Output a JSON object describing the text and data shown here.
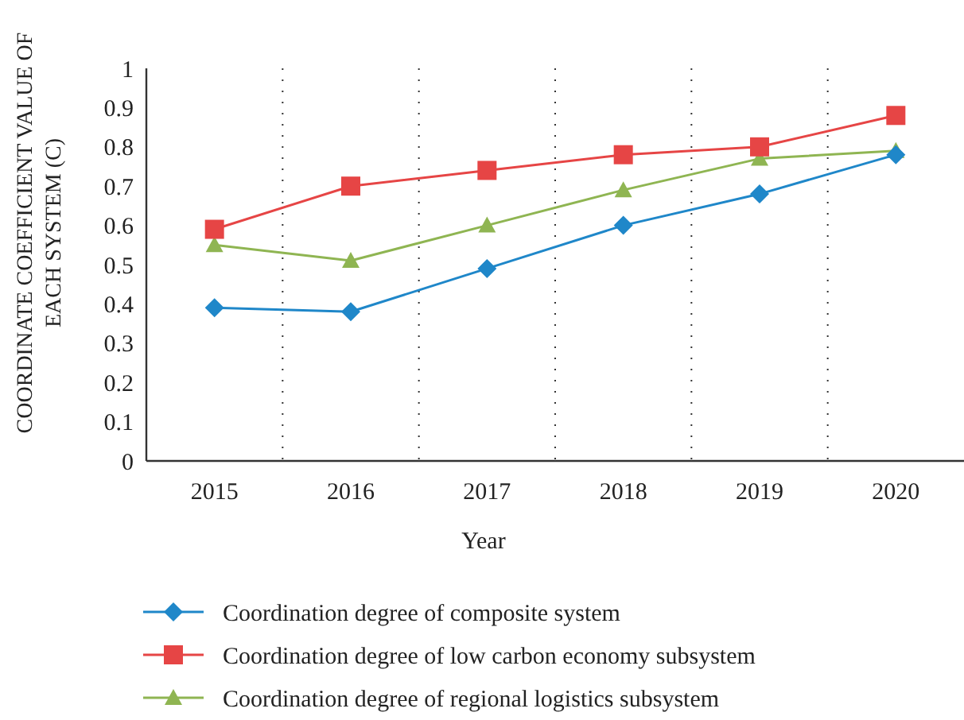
{
  "chart_data": {
    "type": "line",
    "xlabel": "Year",
    "ylabel": "COORDINATE COEFFICIENT VALUE OF EACH SYSTEM (C)",
    "categories": [
      "2015",
      "2016",
      "2017",
      "2018",
      "2019",
      "2020"
    ],
    "ylim": [
      0,
      1
    ],
    "yticks": [
      0,
      0.1,
      0.2,
      0.3,
      0.4,
      0.5,
      0.6,
      0.7,
      0.8,
      0.9,
      1
    ],
    "grid": "x",
    "legend": "bottom",
    "line_style": "solid",
    "series": [
      {
        "name": "Coordination degree of composite system",
        "color": "#1f87c9",
        "marker": "diamond",
        "values": [
          0.39,
          0.38,
          0.49,
          0.6,
          0.68,
          0.78
        ]
      },
      {
        "name": "Coordination degree of low carbon economy subsystem",
        "color": "#e64545",
        "marker": "square",
        "values": [
          0.59,
          0.7,
          0.74,
          0.78,
          0.8,
          0.88
        ]
      },
      {
        "name": "Coordination degree of regional logistics subsystem",
        "color": "#8fb552",
        "marker": "triangle",
        "values": [
          0.55,
          0.51,
          0.6,
          0.69,
          0.77,
          0.79
        ]
      }
    ]
  }
}
